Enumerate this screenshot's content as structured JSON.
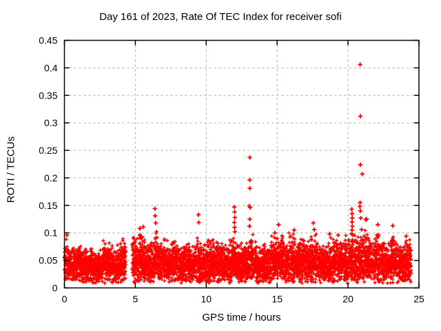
{
  "chart_data": {
    "type": "scatter",
    "title": "Day 161 of 2023, Rate Of TEC Index for receiver sofi",
    "xlabel": "GPS time / hours",
    "ylabel": "ROTI / TECUs",
    "xlim": [
      0,
      25
    ],
    "ylim": [
      0,
      0.45
    ],
    "xticks": {
      "values": [
        0,
        5,
        10,
        15,
        20,
        25
      ],
      "labels": [
        "0",
        "5",
        "10",
        "15",
        "20",
        "25"
      ]
    },
    "yticks": {
      "values": [
        0,
        0.05,
        0.1,
        0.15,
        0.2,
        0.25,
        0.3,
        0.35,
        0.4,
        0.45
      ],
      "labels": [
        "0",
        "0.05",
        "0.1",
        "0.15",
        "0.2",
        "0.25",
        "0.3",
        "0.35",
        "0.4",
        "0.45"
      ]
    },
    "grid": {
      "show": true,
      "style": "dashed",
      "color": "#a9a9a9"
    },
    "axis_color": "#000000",
    "background_color": "#ffffff",
    "marker": {
      "shape": "plus",
      "color": "#ff0000"
    },
    "data_coverage": {
      "start_hour": 0.0,
      "end_hour": 24.45,
      "gap_hours": [
        4.33,
        4.77
      ]
    },
    "dense_band": {
      "description": "Dense noisy band of ROTI values for all tracked satellites; bulk of points lie between 0.02 and 0.07 TECU with spiky tops listed as top_envelope [x_start_hour, x_end_hour, y_top].",
      "y_bottom": 0.008,
      "density_points_per_hour": 230,
      "top_envelope": [
        [
          0.0,
          0.1,
          0.078
        ],
        [
          0.1,
          0.3,
          0.098
        ],
        [
          0.3,
          0.6,
          0.086
        ],
        [
          0.6,
          0.9,
          0.08
        ],
        [
          0.9,
          1.2,
          0.083
        ],
        [
          1.2,
          1.5,
          0.078
        ],
        [
          1.5,
          1.8,
          0.073
        ],
        [
          1.8,
          2.1,
          0.08
        ],
        [
          2.1,
          2.4,
          0.073
        ],
        [
          2.4,
          2.7,
          0.076
        ],
        [
          2.7,
          3.1,
          0.092
        ],
        [
          3.1,
          3.4,
          0.082
        ],
        [
          3.4,
          3.7,
          0.073
        ],
        [
          3.7,
          4.0,
          0.087
        ],
        [
          4.0,
          4.33,
          0.091
        ],
        [
          4.77,
          5.1,
          0.105
        ],
        [
          5.1,
          5.45,
          0.1
        ],
        [
          5.45,
          5.7,
          0.095
        ],
        [
          5.7,
          6.0,
          0.092
        ],
        [
          6.0,
          6.3,
          0.09
        ],
        [
          6.3,
          6.55,
          0.105
        ],
        [
          6.55,
          6.9,
          0.088
        ],
        [
          6.9,
          7.3,
          0.092
        ],
        [
          7.3,
          7.6,
          0.085
        ],
        [
          7.6,
          8.0,
          0.09
        ],
        [
          8.0,
          8.4,
          0.082
        ],
        [
          8.4,
          8.8,
          0.086
        ],
        [
          8.8,
          9.2,
          0.08
        ],
        [
          9.2,
          9.6,
          0.095
        ],
        [
          9.6,
          10.0,
          0.085
        ],
        [
          10.0,
          10.4,
          0.09
        ],
        [
          10.4,
          10.8,
          0.094
        ],
        [
          10.8,
          11.2,
          0.088
        ],
        [
          11.2,
          11.6,
          0.082
        ],
        [
          11.6,
          12.1,
          0.096
        ],
        [
          12.1,
          12.5,
          0.088
        ],
        [
          12.5,
          12.9,
          0.085
        ],
        [
          12.9,
          13.3,
          0.1
        ],
        [
          13.3,
          13.7,
          0.085
        ],
        [
          13.7,
          14.1,
          0.08
        ],
        [
          14.1,
          14.5,
          0.082
        ],
        [
          14.5,
          15.0,
          0.098
        ],
        [
          15.0,
          15.4,
          0.1
        ],
        [
          15.4,
          15.8,
          0.088
        ],
        [
          15.8,
          16.2,
          0.104
        ],
        [
          16.2,
          16.6,
          0.09
        ],
        [
          16.6,
          17.0,
          0.092
        ],
        [
          17.0,
          17.4,
          0.088
        ],
        [
          17.4,
          17.8,
          0.105
        ],
        [
          17.8,
          18.2,
          0.09
        ],
        [
          18.2,
          18.6,
          0.085
        ],
        [
          18.6,
          19.0,
          0.096
        ],
        [
          19.0,
          19.4,
          0.095
        ],
        [
          19.4,
          19.8,
          0.09
        ],
        [
          19.8,
          20.2,
          0.098
        ],
        [
          20.2,
          20.6,
          0.1
        ],
        [
          20.6,
          21.0,
          0.1
        ],
        [
          21.0,
          21.4,
          0.105
        ],
        [
          21.4,
          21.8,
          0.098
        ],
        [
          21.8,
          22.2,
          0.1
        ],
        [
          22.2,
          22.6,
          0.092
        ],
        [
          22.6,
          23.0,
          0.088
        ],
        [
          23.0,
          23.4,
          0.1
        ],
        [
          23.4,
          23.8,
          0.09
        ],
        [
          23.8,
          24.1,
          0.088
        ],
        [
          24.1,
          24.45,
          0.096
        ]
      ]
    },
    "outliers": [
      [
        0.18,
        0.096
      ],
      [
        5.32,
        0.108
      ],
      [
        5.55,
        0.111
      ],
      [
        6.38,
        0.144
      ],
      [
        6.4,
        0.131
      ],
      [
        6.44,
        0.118
      ],
      [
        9.45,
        0.133
      ],
      [
        9.47,
        0.119
      ],
      [
        11.98,
        0.147
      ],
      [
        12.0,
        0.138
      ],
      [
        12.02,
        0.128
      ],
      [
        11.98,
        0.119
      ],
      [
        12.0,
        0.11
      ],
      [
        12.02,
        0.102
      ],
      [
        13.07,
        0.237
      ],
      [
        13.07,
        0.196
      ],
      [
        13.07,
        0.181
      ],
      [
        13.03,
        0.149
      ],
      [
        13.1,
        0.146
      ],
      [
        13.07,
        0.125
      ],
      [
        13.05,
        0.112
      ],
      [
        14.85,
        0.1
      ],
      [
        15.1,
        0.115
      ],
      [
        16.2,
        0.105
      ],
      [
        17.55,
        0.118
      ],
      [
        17.62,
        0.106
      ],
      [
        18.7,
        0.098
      ],
      [
        19.3,
        0.096
      ],
      [
        20.26,
        0.143
      ],
      [
        20.28,
        0.135
      ],
      [
        20.3,
        0.127
      ],
      [
        20.28,
        0.12
      ],
      [
        20.3,
        0.112
      ],
      [
        20.28,
        0.105
      ],
      [
        20.26,
        0.098
      ],
      [
        20.85,
        0.406
      ],
      [
        20.87,
        0.312
      ],
      [
        20.87,
        0.224
      ],
      [
        21.0,
        0.207
      ],
      [
        20.85,
        0.155
      ],
      [
        20.83,
        0.148
      ],
      [
        20.87,
        0.14
      ],
      [
        20.9,
        0.127
      ],
      [
        20.95,
        0.106
      ],
      [
        21.25,
        0.124
      ],
      [
        21.3,
        0.125
      ],
      [
        22.1,
        0.115
      ],
      [
        22.15,
        0.096
      ],
      [
        23.15,
        0.113
      ],
      [
        24.1,
        0.094
      ]
    ]
  }
}
